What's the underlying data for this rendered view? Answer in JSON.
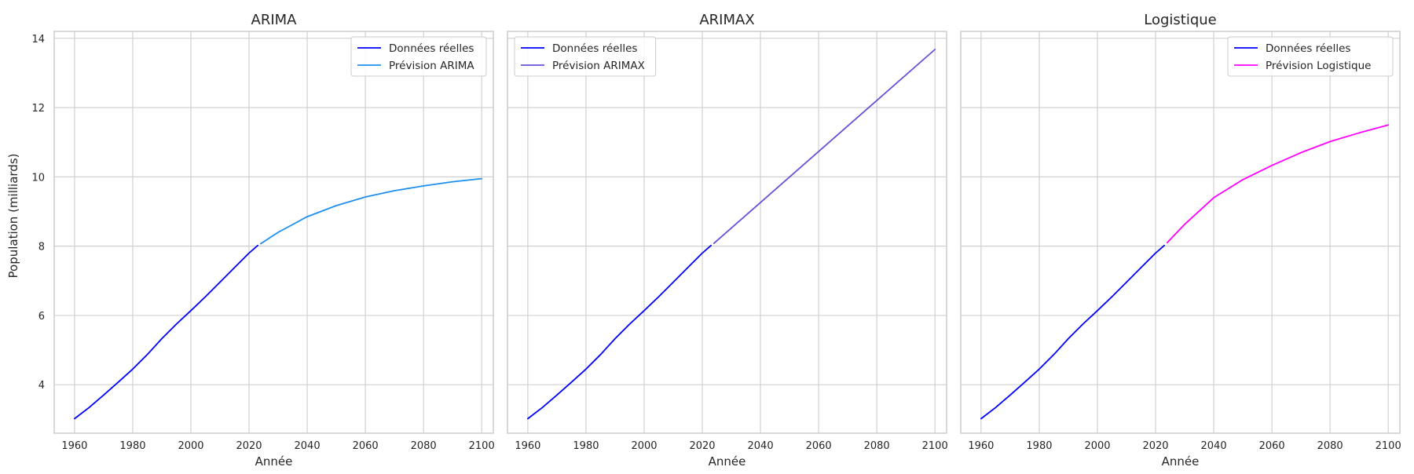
{
  "figure": {
    "ylabel": "Population (milliards)",
    "xlabel": "Année"
  },
  "colors": {
    "actual": "#0000ff",
    "grid": "#d0d0d0",
    "frame": "#cccccc"
  },
  "chart_data": [
    {
      "type": "line",
      "title": "ARIMA",
      "xlabel": "Année",
      "ylabel": "Population (milliards)",
      "xlim": [
        1953,
        2104
      ],
      "ylim": [
        2.6,
        14.2
      ],
      "xticks": [
        1960,
        1980,
        2000,
        2020,
        2040,
        2060,
        2080,
        2100
      ],
      "yticks": [
        4,
        6,
        8,
        10,
        12,
        14
      ],
      "grid": true,
      "legend_position": "top-right",
      "series": [
        {
          "name": "Données réelles",
          "color": "#0000ff",
          "x": [
            1960,
            1965,
            1970,
            1975,
            1980,
            1985,
            1990,
            1995,
            2000,
            2005,
            2010,
            2015,
            2020,
            2023
          ],
          "y": [
            3.02,
            3.34,
            3.7,
            4.07,
            4.45,
            4.87,
            5.33,
            5.75,
            6.14,
            6.54,
            6.96,
            7.38,
            7.8,
            8.02
          ]
        },
        {
          "name": "Prévision ARIMA",
          "color": "#1e8ff0",
          "x": [
            2024,
            2030,
            2040,
            2050,
            2060,
            2070,
            2080,
            2090,
            2100
          ],
          "y": [
            8.07,
            8.4,
            8.85,
            9.17,
            9.42,
            9.6,
            9.74,
            9.86,
            9.95
          ]
        }
      ]
    },
    {
      "type": "line",
      "title": "ARIMAX",
      "xlabel": "Année",
      "ylabel": "",
      "xlim": [
        1953,
        2104
      ],
      "ylim": [
        2.6,
        14.2
      ],
      "xticks": [
        1960,
        1980,
        2000,
        2020,
        2040,
        2060,
        2080,
        2100
      ],
      "yticks": [
        4,
        6,
        8,
        10,
        12,
        14
      ],
      "grid": true,
      "legend_position": "top-left",
      "series": [
        {
          "name": "Données réelles",
          "color": "#0000ff",
          "x": [
            1960,
            1965,
            1970,
            1975,
            1980,
            1985,
            1990,
            1995,
            2000,
            2005,
            2010,
            2015,
            2020,
            2023
          ],
          "y": [
            3.02,
            3.34,
            3.7,
            4.07,
            4.45,
            4.87,
            5.33,
            5.75,
            6.14,
            6.54,
            6.96,
            7.38,
            7.8,
            8.02
          ]
        },
        {
          "name": "Prévision ARIMAX",
          "color": "#6a4fd8",
          "x": [
            2024,
            2100
          ],
          "y": [
            8.08,
            13.68
          ]
        }
      ]
    },
    {
      "type": "line",
      "title": "Logistique",
      "xlabel": "Année",
      "ylabel": "",
      "xlim": [
        1953,
        2104
      ],
      "ylim": [
        2.6,
        14.2
      ],
      "xticks": [
        1960,
        1980,
        2000,
        2020,
        2040,
        2060,
        2080,
        2100
      ],
      "yticks": [
        4,
        6,
        8,
        10,
        12,
        14
      ],
      "grid": true,
      "legend_position": "top-right",
      "series": [
        {
          "name": "Données réelles",
          "color": "#0000ff",
          "x": [
            1960,
            1965,
            1970,
            1975,
            1980,
            1985,
            1990,
            1995,
            2000,
            2005,
            2010,
            2015,
            2020,
            2023
          ],
          "y": [
            3.02,
            3.34,
            3.7,
            4.07,
            4.45,
            4.87,
            5.33,
            5.75,
            6.14,
            6.54,
            6.96,
            7.38,
            7.8,
            8.02
          ]
        },
        {
          "name": "Prévision Logistique",
          "color": "#ff00ff",
          "x": [
            2024,
            2030,
            2040,
            2050,
            2060,
            2070,
            2080,
            2090,
            2100
          ],
          "y": [
            8.1,
            8.63,
            9.4,
            9.92,
            10.33,
            10.7,
            11.02,
            11.27,
            11.5
          ]
        }
      ]
    }
  ]
}
